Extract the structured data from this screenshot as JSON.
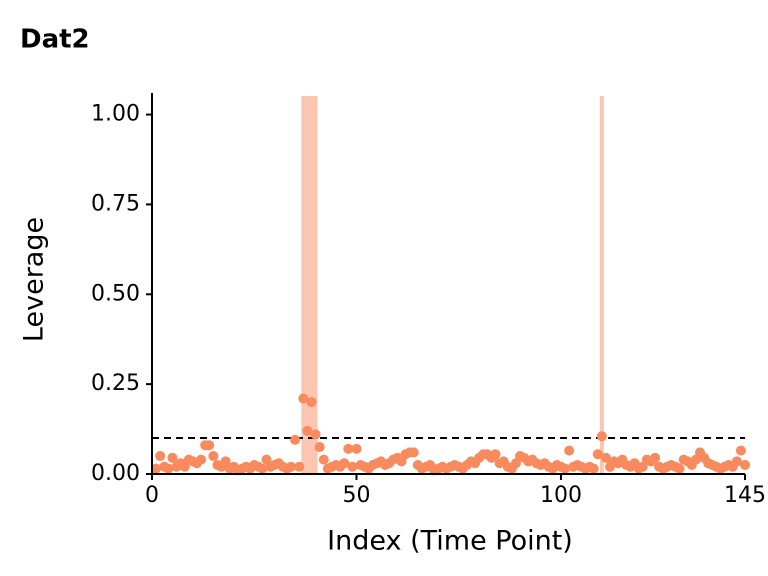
{
  "chart_data": {
    "type": "scatter",
    "title": "Dat2",
    "x_label": "Index (Time Point)",
    "y_label": "Leverage",
    "x": [
      1,
      2,
      3,
      4,
      5,
      6,
      7,
      8,
      9,
      10,
      11,
      12,
      13,
      14,
      15,
      16,
      17,
      18,
      19,
      20,
      21,
      22,
      23,
      24,
      25,
      26,
      27,
      28,
      29,
      30,
      31,
      32,
      33,
      34,
      35,
      36,
      37,
      38,
      39,
      40,
      41,
      42,
      43,
      44,
      45,
      46,
      47,
      48,
      49,
      50,
      51,
      52,
      53,
      54,
      55,
      56,
      57,
      58,
      59,
      60,
      61,
      62,
      63,
      64,
      65,
      66,
      67,
      68,
      69,
      70,
      71,
      72,
      73,
      74,
      75,
      76,
      77,
      78,
      79,
      80,
      81,
      82,
      83,
      84,
      85,
      86,
      87,
      88,
      89,
      90,
      91,
      92,
      93,
      94,
      95,
      96,
      97,
      98,
      99,
      100,
      101,
      102,
      103,
      104,
      105,
      106,
      107,
      108,
      109,
      110,
      111,
      112,
      113,
      114,
      115,
      116,
      117,
      118,
      119,
      120,
      121,
      122,
      123,
      124,
      125,
      126,
      127,
      128,
      129,
      130,
      131,
      132,
      133,
      134,
      135,
      136,
      137,
      138,
      139,
      140,
      141,
      142,
      143,
      144,
      145
    ],
    "values": [
      0.015,
      0.05,
      0.02,
      0.015,
      0.045,
      0.02,
      0.03,
      0.02,
      0.04,
      0.035,
      0.03,
      0.04,
      0.08,
      0.08,
      0.05,
      0.025,
      0.02,
      0.035,
      0.015,
      0.02,
      0.01,
      0.015,
      0.02,
      0.015,
      0.025,
      0.02,
      0.015,
      0.04,
      0.02,
      0.025,
      0.03,
      0.02,
      0.015,
      0.02,
      0.095,
      0.02,
      0.21,
      0.12,
      0.2,
      0.11,
      0.075,
      0.04,
      0.015,
      0.02,
      0.025,
      0.02,
      0.03,
      0.07,
      0.02,
      0.07,
      0.025,
      0.02,
      0.015,
      0.025,
      0.03,
      0.035,
      0.025,
      0.03,
      0.04,
      0.045,
      0.035,
      0.055,
      0.06,
      0.06,
      0.025,
      0.015,
      0.02,
      0.025,
      0.01,
      0.015,
      0.02,
      0.015,
      0.02,
      0.025,
      0.02,
      0.015,
      0.025,
      0.035,
      0.03,
      0.045,
      0.055,
      0.055,
      0.045,
      0.055,
      0.03,
      0.035,
      0.02,
      0.015,
      0.03,
      0.05,
      0.045,
      0.035,
      0.04,
      0.03,
      0.025,
      0.03,
      0.02,
      0.015,
      0.025,
      0.02,
      0.015,
      0.065,
      0.02,
      0.025,
      0.02,
      0.015,
      0.02,
      0.015,
      0.055,
      0.105,
      0.045,
      0.02,
      0.035,
      0.03,
      0.04,
      0.025,
      0.02,
      0.03,
      0.015,
      0.02,
      0.04,
      0.035,
      0.045,
      0.02,
      0.015,
      0.02,
      0.025,
      0.02,
      0.015,
      0.04,
      0.035,
      0.025,
      0.04,
      0.06,
      0.045,
      0.03,
      0.025,
      0.02,
      0.015,
      0.02,
      0.025,
      0.02,
      0.035,
      0.065,
      0.025
    ],
    "color": "#f88a5e",
    "highlight_x": [
      37,
      38,
      39,
      40,
      110
    ],
    "highlight_color": "#fbbfa6",
    "threshold": 0.1,
    "xlim": [
      0,
      145
    ],
    "xticks": [
      0,
      50,
      100,
      145
    ],
    "ylim": [
      0,
      1.06
    ],
    "yticks": [
      {
        "value": 0,
        "label": "0.00"
      },
      {
        "value": 0.25,
        "label": "0.25"
      },
      {
        "value": 0.5,
        "label": "0.50"
      },
      {
        "value": 0.75,
        "label": "0.75"
      },
      {
        "value": 1,
        "label": "1.00"
      }
    ]
  }
}
